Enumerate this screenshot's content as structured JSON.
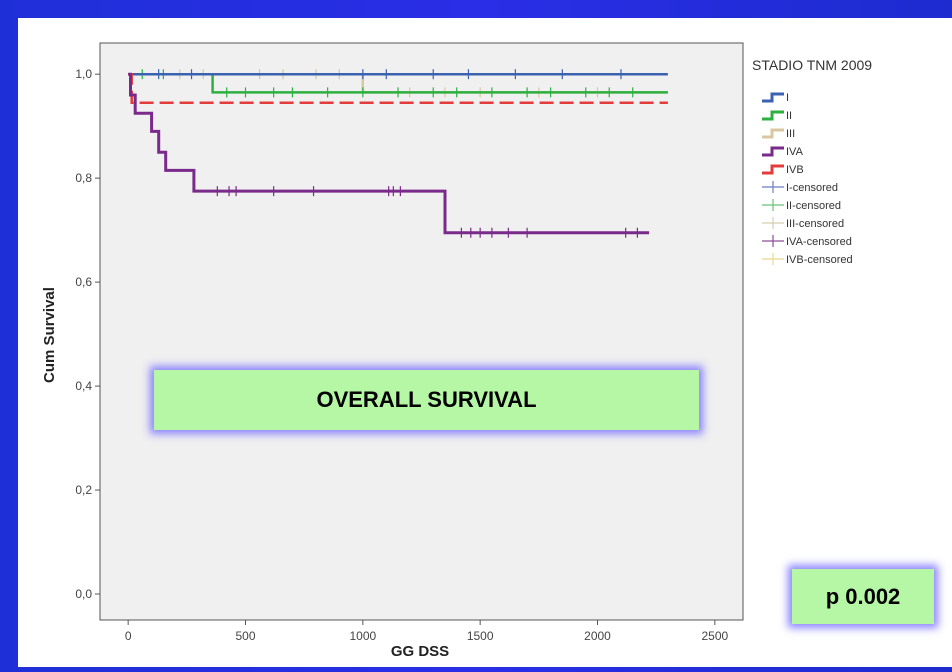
{
  "chart_data": {
    "type": "line",
    "xlabel": "GG DSS",
    "ylabel": "Cum Survival",
    "xlim": [
      -120,
      2620
    ],
    "ylim": [
      -0.05,
      1.06
    ],
    "x_ticks": [
      0,
      500,
      1000,
      1500,
      2000,
      2500
    ],
    "y_ticks": [
      0.0,
      0.2,
      0.4,
      0.6,
      0.8,
      1.0
    ],
    "x_tick_labels": [
      "0",
      "500",
      "1000",
      "1500",
      "2000",
      "2500"
    ],
    "y_tick_labels": [
      "0,0",
      "0,2",
      "0,4",
      "0,6",
      "0,8",
      "1,0"
    ],
    "legend_title": "STADIO TNM 2009",
    "legend_position": "right",
    "series": [
      {
        "name": "I",
        "color": "#3a62b0",
        "steps": [
          [
            0,
            1.0
          ],
          [
            2300,
            1.0
          ]
        ],
        "censored": [
          130,
          270,
          1000,
          1100,
          1300,
          1450,
          1650,
          1850,
          2100
        ]
      },
      {
        "name": "II",
        "color": "#2db040",
        "steps": [
          [
            0,
            1.0
          ],
          [
            360,
            1.0
          ],
          [
            360,
            0.965
          ],
          [
            2300,
            0.965
          ]
        ],
        "censored": [
          60,
          150,
          420,
          500,
          620,
          700,
          850,
          1000,
          1150,
          1300,
          1400,
          1550,
          1700,
          1800,
          1950,
          2050,
          2150
        ]
      },
      {
        "name": "III",
        "color": "#d8c8a0",
        "steps": [
          [
            0,
            1.0
          ],
          [
            1000,
            1.0
          ],
          [
            1000,
            0.965
          ],
          [
            2300,
            0.965
          ]
        ],
        "censored": [
          220,
          320,
          560,
          660,
          800,
          900,
          1200,
          1350,
          1500,
          1750,
          2000
        ]
      },
      {
        "name": "IVA",
        "color": "#7a2a8a",
        "steps": [
          [
            0,
            1.0
          ],
          [
            10,
            1.0
          ],
          [
            10,
            0.96
          ],
          [
            30,
            0.96
          ],
          [
            30,
            0.925
          ],
          [
            100,
            0.925
          ],
          [
            100,
            0.89
          ],
          [
            130,
            0.89
          ],
          [
            130,
            0.85
          ],
          [
            160,
            0.85
          ],
          [
            160,
            0.815
          ],
          [
            280,
            0.815
          ],
          [
            280,
            0.775
          ],
          [
            1350,
            0.775
          ],
          [
            1350,
            0.695
          ],
          [
            2220,
            0.695
          ]
        ],
        "censored": [
          380,
          430,
          460,
          620,
          790,
          1110,
          1130,
          1160,
          1420,
          1460,
          1500,
          1550,
          1620,
          1700,
          2120,
          2170
        ]
      },
      {
        "name": "IVB",
        "color": "#e43c3c",
        "steps": [
          [
            0,
            1.0
          ],
          [
            15,
            1.0
          ],
          [
            15,
            0.945
          ],
          [
            2300,
            0.945
          ]
        ],
        "censored": []
      }
    ]
  },
  "legend": {
    "items": [
      {
        "label": "I",
        "type": "step",
        "color": "#3a62b0"
      },
      {
        "label": "II",
        "type": "step",
        "color": "#2db040"
      },
      {
        "label": "III",
        "type": "step",
        "color": "#d8c8a0"
      },
      {
        "label": "IVA",
        "type": "step",
        "color": "#7a2a8a"
      },
      {
        "label": "IVB",
        "type": "step",
        "color": "#e43c3c"
      },
      {
        "label": "I-censored",
        "type": "cross",
        "color": "#6a7ec2"
      },
      {
        "label": "II-censored",
        "type": "cross",
        "color": "#6cc07a"
      },
      {
        "label": "III-censored",
        "type": "cross",
        "color": "#d8cfb0"
      },
      {
        "label": "IVA-censored",
        "type": "cross",
        "color": "#8a4f98"
      },
      {
        "label": "IVB-censored",
        "type": "cross",
        "color": "#e8d890"
      }
    ]
  },
  "overlay": {
    "title": "OVERALL SURVIVAL",
    "pvalue": "p 0.002"
  },
  "colors": {
    "background": "#2230dc",
    "overlay_fill": "#b6f7a6",
    "overlay_glow": "#786eff",
    "plot_bg": "#f0f0f0"
  }
}
